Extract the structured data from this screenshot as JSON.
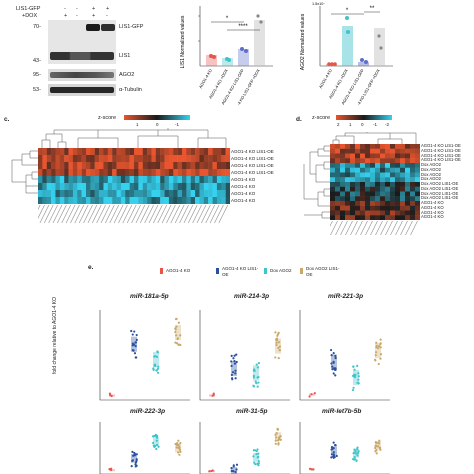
{
  "blot": {
    "col_headers": [
      "LIS1-GFP",
      "+DOX"
    ],
    "signs_row1": [
      "-",
      "-",
      "+",
      "+"
    ],
    "signs_row2": [
      "+",
      "-",
      "+",
      "-"
    ],
    "mw_markers": [
      "70-",
      "43-",
      "95-",
      "53-"
    ],
    "bands": [
      "LIS1-GFP",
      "LIS1",
      "AGO2",
      "α-Tubulin"
    ]
  },
  "bar_lis1": {
    "ylabel": "LIS1 Normalized values",
    "categories": [
      "AGO1-4 KO",
      "AGO1-4 KO +DOX",
      "AGO1-4 KO LIS1-GFP",
      "AGO1-4 KO LIS1-GFP +DOX"
    ],
    "stars": [
      "*",
      "****"
    ],
    "colors": [
      "#e8544a",
      "#3fc4c9",
      "#5b6fc9",
      "#bfbfbf"
    ]
  },
  "bar_ago2": {
    "ylabel": "AGO2 Normalized values",
    "axis_note": "1.5x10⁻",
    "categories": [
      "AGO1-4 KO",
      "AGO1-4 KO +DOX",
      "AGO1-4 KO LIS1-GFP",
      "AGO1-4 KO LIS1-GFP +DOX"
    ],
    "stars": [
      "*",
      "**"
    ]
  },
  "panel_c": {
    "letter": "c.",
    "zscore_label": "z-score",
    "scale_ticks": [
      "1",
      "0",
      "-1"
    ],
    "row_labels": [
      "AGO1-4 KO LIS1-OE",
      "AGO1-4 KO LIS1-OE",
      "AGO1-4 KO LIS1-OE",
      "AGO1-4 KO LIS1-OE",
      "AGO1-4 KO",
      "AGO1-4 KO",
      "AGO1-4 KO",
      "AGO1-4 KO"
    ]
  },
  "panel_d": {
    "letter": "d.",
    "zscore_label": "z-score",
    "scale_ticks": [
      "2",
      "1",
      "0",
      "-1",
      "-2"
    ],
    "row_labels": [
      "AGO1-4 KO LIS1-OE",
      "AGO1-4 KO LIS1-OE",
      "AGO1-4 KO LIS1-OE",
      "AGO1-4 KO LIS1-OE",
      "Dox AGO2",
      "Dox AGO2",
      "Dox AGO2",
      "Dox AGO2",
      "Dox AGO2 LIS1-OE",
      "Dox AGO2 LIS1-OE",
      "Dox AGO2 LIS1-OE",
      "Dox AGO2 LIS1-OE",
      "AGO1-4 KO",
      "AGO1-4 KO",
      "AGO1-4 KO",
      "AGO1-4 KO"
    ]
  },
  "panel_e": {
    "letter": "e.",
    "legend": [
      {
        "label": "AGO1-4 KO",
        "color": "#e8544a"
      },
      {
        "label": "AGO1-4 KO LIS1-OE",
        "color": "#2b4f9e"
      },
      {
        "label": "Dox AGO2",
        "color": "#3fc4c9"
      },
      {
        "label": "Dox AGO2 LIS1-OE",
        "color": "#c9a86a"
      }
    ],
    "ylabel": "fold change relative to AGO1-4 KO",
    "plots": [
      {
        "title": "miR-181a-5p"
      },
      {
        "title": "miR-214-3p"
      },
      {
        "title": "miR-221-3p"
      },
      {
        "title": "miR-222-3p"
      },
      {
        "title": "miR-31-5p"
      },
      {
        "title": "miR-let7b-5b"
      }
    ]
  }
}
